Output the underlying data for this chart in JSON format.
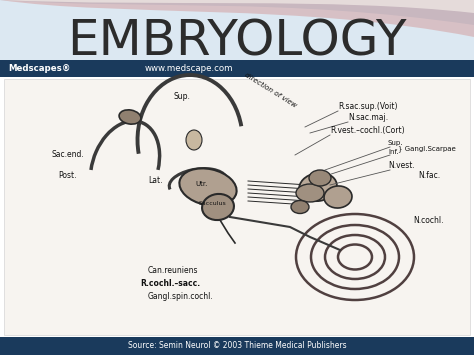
{
  "title": "EMBRYOLOGY",
  "title_fontsize": 36,
  "title_color": "#2c2c2c",
  "header_bar_color": "#1a3a5c",
  "header_bar_text_left": "Medscapes®",
  "header_bar_text_right": "www.medscape.com",
  "header_text_color": "#ffffff",
  "footer_bar_color": "#1a3a5c",
  "footer_text": "Source: Semin Neurol © 2003 Thieme Medical Publishers",
  "footer_text_color": "#ffffff",
  "main_bg": "#f5f0eb"
}
